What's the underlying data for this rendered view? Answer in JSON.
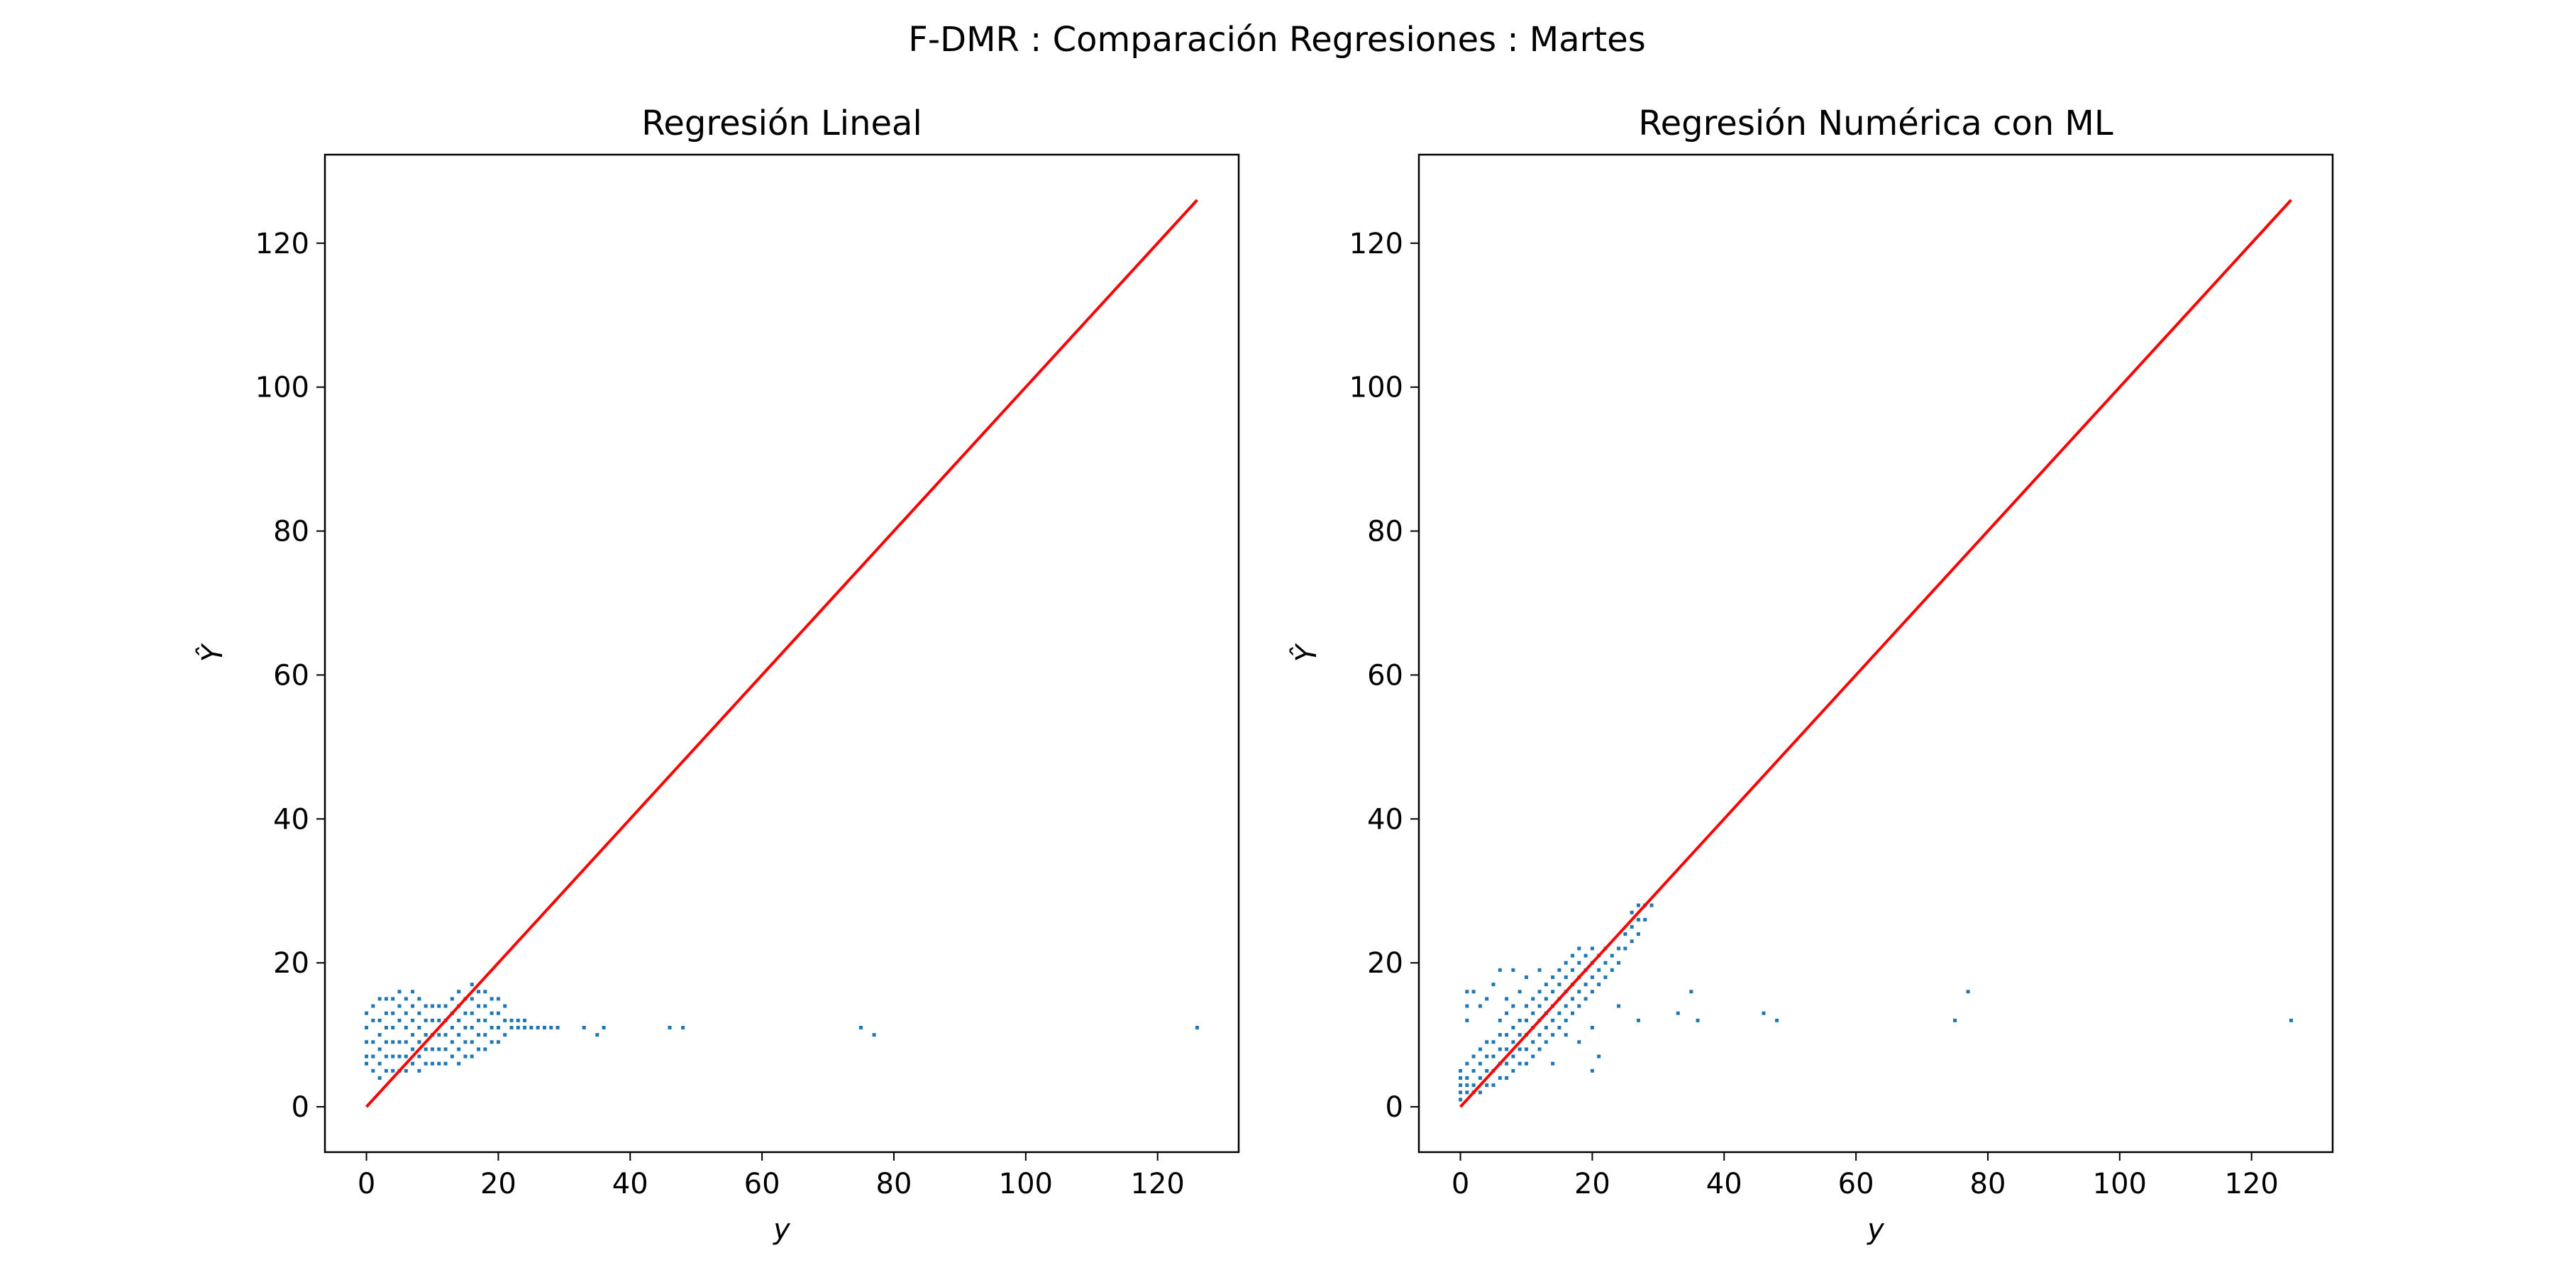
{
  "suptitle": "F-DMR : Comparación Regresiones : Martes",
  "colors": {
    "points": "#1f77b4",
    "identity_line": "#ff0000"
  },
  "chart_data": [
    {
      "type": "scatter",
      "title": "Regresión Lineal",
      "xlabel": "y",
      "ylabel": "Ŷ",
      "xlim": [
        -6.3,
        132.3
      ],
      "ylim": [
        -6.3,
        132.3
      ],
      "xticks": [
        0,
        20,
        40,
        60,
        80,
        100,
        120
      ],
      "yticks": [
        0,
        20,
        40,
        60,
        80,
        100,
        120
      ],
      "grid": false,
      "identity_line": [
        [
          0,
          0
        ],
        [
          126,
          126
        ]
      ],
      "marker_size": 2,
      "points": [
        [
          0,
          6
        ],
        [
          0,
          7
        ],
        [
          0,
          9
        ],
        [
          0,
          11
        ],
        [
          0,
          13
        ],
        [
          1,
          5
        ],
        [
          1,
          7
        ],
        [
          1,
          9
        ],
        [
          1,
          12
        ],
        [
          1,
          14
        ],
        [
          2,
          4
        ],
        [
          2,
          6
        ],
        [
          2,
          8
        ],
        [
          2,
          10
        ],
        [
          2,
          12
        ],
        [
          2,
          15
        ],
        [
          3,
          5
        ],
        [
          3,
          7
        ],
        [
          3,
          9
        ],
        [
          3,
          11
        ],
        [
          3,
          13
        ],
        [
          3,
          15
        ],
        [
          4,
          5
        ],
        [
          4,
          7
        ],
        [
          4,
          9
        ],
        [
          4,
          11
        ],
        [
          4,
          13
        ],
        [
          4,
          15
        ],
        [
          5,
          5
        ],
        [
          5,
          7
        ],
        [
          5,
          9
        ],
        [
          5,
          12
        ],
        [
          5,
          14
        ],
        [
          5,
          16
        ],
        [
          6,
          5
        ],
        [
          6,
          7
        ],
        [
          6,
          9
        ],
        [
          6,
          11
        ],
        [
          6,
          13
        ],
        [
          6,
          15
        ],
        [
          7,
          6
        ],
        [
          7,
          8
        ],
        [
          7,
          10
        ],
        [
          7,
          12
        ],
        [
          7,
          14
        ],
        [
          7,
          16
        ],
        [
          8,
          5
        ],
        [
          8,
          7
        ],
        [
          8,
          9
        ],
        [
          8,
          11
        ],
        [
          8,
          13
        ],
        [
          8,
          15
        ],
        [
          9,
          6
        ],
        [
          9,
          8
        ],
        [
          9,
          10
        ],
        [
          9,
          12
        ],
        [
          9,
          14
        ],
        [
          10,
          6
        ],
        [
          10,
          8
        ],
        [
          10,
          10
        ],
        [
          10,
          12
        ],
        [
          10,
          14
        ],
        [
          11,
          6
        ],
        [
          11,
          8
        ],
        [
          11,
          10
        ],
        [
          11,
          12
        ],
        [
          11,
          14
        ],
        [
          12,
          6
        ],
        [
          12,
          8
        ],
        [
          12,
          10
        ],
        [
          12,
          12
        ],
        [
          12,
          14
        ],
        [
          13,
          7
        ],
        [
          13,
          9
        ],
        [
          13,
          11
        ],
        [
          13,
          13
        ],
        [
          13,
          15
        ],
        [
          14,
          6
        ],
        [
          14,
          8
        ],
        [
          14,
          10
        ],
        [
          14,
          12
        ],
        [
          14,
          14
        ],
        [
          14,
          16
        ],
        [
          15,
          7
        ],
        [
          15,
          9
        ],
        [
          15,
          11
        ],
        [
          15,
          13
        ],
        [
          15,
          15
        ],
        [
          16,
          7
        ],
        [
          16,
          9
        ],
        [
          16,
          11
        ],
        [
          16,
          13
        ],
        [
          16,
          15
        ],
        [
          16,
          17
        ],
        [
          17,
          8
        ],
        [
          17,
          10
        ],
        [
          17,
          12
        ],
        [
          17,
          14
        ],
        [
          17,
          16
        ],
        [
          18,
          8
        ],
        [
          18,
          10
        ],
        [
          18,
          12
        ],
        [
          18,
          14
        ],
        [
          18,
          16
        ],
        [
          19,
          9
        ],
        [
          19,
          11
        ],
        [
          19,
          13
        ],
        [
          19,
          15
        ],
        [
          20,
          9
        ],
        [
          20,
          11
        ],
        [
          20,
          13
        ],
        [
          20,
          15
        ],
        [
          21,
          10
        ],
        [
          21,
          12
        ],
        [
          21,
          14
        ],
        [
          22,
          11
        ],
        [
          22,
          12
        ],
        [
          23,
          11
        ],
        [
          23,
          12
        ],
        [
          24,
          11
        ],
        [
          24,
          12
        ],
        [
          25,
          11
        ],
        [
          26,
          11
        ],
        [
          27,
          11
        ],
        [
          28,
          11
        ],
        [
          29,
          11
        ],
        [
          33,
          11
        ],
        [
          35,
          10
        ],
        [
          36,
          11
        ],
        [
          46,
          11
        ],
        [
          48,
          11
        ],
        [
          75,
          11
        ],
        [
          77,
          10
        ],
        [
          126,
          11
        ]
      ]
    },
    {
      "type": "scatter",
      "title": "Regresión Numérica con ML",
      "xlabel": "y",
      "ylabel": "Ŷ",
      "xlim": [
        -6.3,
        132.3
      ],
      "ylim": [
        -6.3,
        132.3
      ],
      "xticks": [
        0,
        20,
        40,
        60,
        80,
        100,
        120
      ],
      "yticks": [
        0,
        20,
        40,
        60,
        80,
        100,
        120
      ],
      "grid": false,
      "identity_line": [
        [
          0,
          0
        ],
        [
          126,
          126
        ]
      ],
      "marker_size": 2,
      "points": [
        [
          0,
          1
        ],
        [
          0,
          2
        ],
        [
          0,
          3
        ],
        [
          0,
          4
        ],
        [
          0,
          5
        ],
        [
          1,
          2
        ],
        [
          1,
          3
        ],
        [
          1,
          4
        ],
        [
          1,
          6
        ],
        [
          1,
          12
        ],
        [
          1,
          14
        ],
        [
          1,
          16
        ],
        [
          2,
          2
        ],
        [
          2,
          3
        ],
        [
          2,
          5
        ],
        [
          2,
          7
        ],
        [
          2,
          16
        ],
        [
          3,
          2
        ],
        [
          3,
          4
        ],
        [
          3,
          6
        ],
        [
          3,
          8
        ],
        [
          3,
          14
        ],
        [
          4,
          3
        ],
        [
          4,
          5
        ],
        [
          4,
          7
        ],
        [
          4,
          9
        ],
        [
          4,
          15
        ],
        [
          5,
          3
        ],
        [
          5,
          5
        ],
        [
          5,
          7
        ],
        [
          5,
          9
        ],
        [
          5,
          17
        ],
        [
          6,
          4
        ],
        [
          6,
          6
        ],
        [
          6,
          8
        ],
        [
          6,
          10
        ],
        [
          6,
          12
        ],
        [
          6,
          19
        ],
        [
          7,
          4
        ],
        [
          7,
          6
        ],
        [
          7,
          8
        ],
        [
          7,
          10
        ],
        [
          7,
          13
        ],
        [
          7,
          15
        ],
        [
          8,
          5
        ],
        [
          8,
          7
        ],
        [
          8,
          9
        ],
        [
          8,
          11
        ],
        [
          8,
          14
        ],
        [
          8,
          19
        ],
        [
          9,
          6
        ],
        [
          9,
          8
        ],
        [
          9,
          10
        ],
        [
          9,
          12
        ],
        [
          9,
          16
        ],
        [
          10,
          6
        ],
        [
          10,
          8
        ],
        [
          10,
          10
        ],
        [
          10,
          12
        ],
        [
          10,
          14
        ],
        [
          10,
          18
        ],
        [
          11,
          7
        ],
        [
          11,
          9
        ],
        [
          11,
          11
        ],
        [
          11,
          13
        ],
        [
          11,
          15
        ],
        [
          12,
          8
        ],
        [
          12,
          10
        ],
        [
          12,
          12
        ],
        [
          12,
          14
        ],
        [
          12,
          16
        ],
        [
          12,
          19
        ],
        [
          13,
          9
        ],
        [
          13,
          11
        ],
        [
          13,
          13
        ],
        [
          13,
          15
        ],
        [
          13,
          17
        ],
        [
          14,
          10
        ],
        [
          14,
          12
        ],
        [
          14,
          14
        ],
        [
          14,
          16
        ],
        [
          14,
          18
        ],
        [
          14,
          6
        ],
        [
          15,
          11
        ],
        [
          15,
          13
        ],
        [
          15,
          15
        ],
        [
          15,
          17
        ],
        [
          15,
          19
        ],
        [
          16,
          12
        ],
        [
          16,
          14
        ],
        [
          16,
          16
        ],
        [
          16,
          18
        ],
        [
          16,
          20
        ],
        [
          16,
          10
        ],
        [
          17,
          13
        ],
        [
          17,
          15
        ],
        [
          17,
          17
        ],
        [
          17,
          19
        ],
        [
          17,
          21
        ],
        [
          18,
          14
        ],
        [
          18,
          16
        ],
        [
          18,
          18
        ],
        [
          18,
          20
        ],
        [
          18,
          22
        ],
        [
          18,
          9
        ],
        [
          19,
          15
        ],
        [
          19,
          17
        ],
        [
          19,
          19
        ],
        [
          19,
          21
        ],
        [
          20,
          16
        ],
        [
          20,
          18
        ],
        [
          20,
          20
        ],
        [
          20,
          22
        ],
        [
          20,
          5
        ],
        [
          20,
          11
        ],
        [
          21,
          17
        ],
        [
          21,
          19
        ],
        [
          21,
          21
        ],
        [
          21,
          7
        ],
        [
          22,
          18
        ],
        [
          22,
          20
        ],
        [
          22,
          22
        ],
        [
          23,
          19
        ],
        [
          23,
          21
        ],
        [
          24,
          20
        ],
        [
          24,
          22
        ],
        [
          24,
          14
        ],
        [
          25,
          22
        ],
        [
          25,
          24
        ],
        [
          26,
          23
        ],
        [
          26,
          25
        ],
        [
          26,
          27
        ],
        [
          27,
          24
        ],
        [
          27,
          26
        ],
        [
          27,
          28
        ],
        [
          27,
          12
        ],
        [
          28,
          26
        ],
        [
          28,
          28
        ],
        [
          29,
          28
        ],
        [
          33,
          13
        ],
        [
          35,
          16
        ],
        [
          36,
          12
        ],
        [
          46,
          13
        ],
        [
          48,
          12
        ],
        [
          75,
          12
        ],
        [
          77,
          16
        ],
        [
          126,
          12
        ]
      ]
    }
  ]
}
